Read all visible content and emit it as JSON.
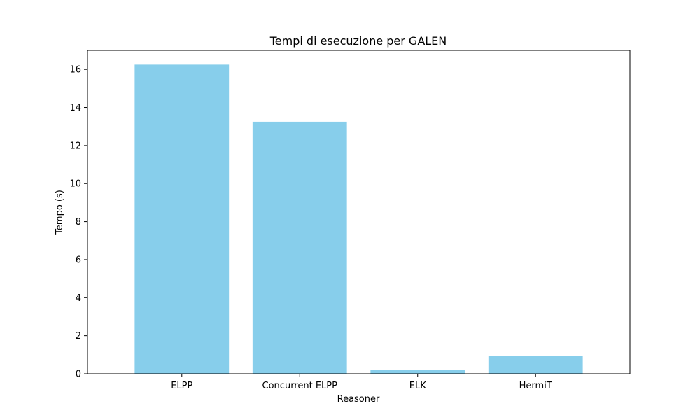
{
  "chart_data": {
    "type": "bar",
    "title": "Tempi di esecuzione per GALEN",
    "xlabel": "Reasoner",
    "ylabel": "Tempo (s)",
    "categories": [
      "ELPP",
      "Concurrent ELPP",
      "ELK",
      "HermiT"
    ],
    "values": [
      16.25,
      13.25,
      0.22,
      0.92
    ],
    "ylim": [
      0,
      17
    ],
    "yticks": [
      0,
      2,
      4,
      6,
      8,
      10,
      12,
      14,
      16
    ],
    "bar_color": "#87ceeb",
    "grid": false,
    "legend": "none"
  }
}
